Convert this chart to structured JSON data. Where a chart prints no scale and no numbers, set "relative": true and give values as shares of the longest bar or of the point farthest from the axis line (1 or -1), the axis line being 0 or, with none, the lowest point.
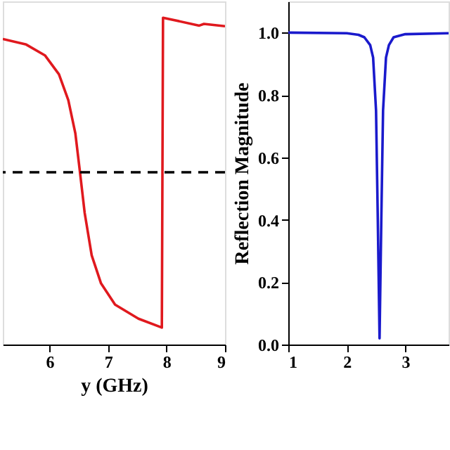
{
  "chart_data": [
    {
      "type": "line",
      "xlabel": "y (GHz)",
      "relative": true,
      "xlim": [
        5.2,
        9
      ],
      "xticks": [
        6,
        7,
        8,
        9
      ],
      "grid": false,
      "series": [
        {
          "color": "#e0191e",
          "x": [
            5.2,
            5.6,
            5.92,
            6.16,
            6.32,
            6.44,
            6.52,
            6.6,
            6.72,
            6.88,
            7.12,
            7.52,
            7.92,
            7.94,
            8.56,
            8.64,
            9.0
          ],
          "values": [
            0.935,
            0.918,
            0.885,
            0.827,
            0.748,
            0.647,
            0.527,
            0.403,
            0.273,
            0.187,
            0.122,
            0.079,
            0.052,
            1.0,
            0.976,
            0.981,
            0.974
          ]
        }
      ],
      "ref_lines": [
        {
          "axis": "y",
          "value": 0.527,
          "color": "#000000",
          "line_style": "dashed"
        }
      ]
    },
    {
      "type": "line",
      "ylabel": "Reflection Magnitude",
      "xlim": [
        1,
        3.74
      ],
      "xticks": [
        1,
        2,
        3
      ],
      "ylim": [
        0,
        1.1
      ],
      "yticks": [
        {
          "value": 0,
          "label": "0.0"
        },
        0.2,
        0.4,
        0.6,
        0.8,
        {
          "value": 1,
          "label": "1.0"
        }
      ],
      "grid": false,
      "series": [
        {
          "color": "#1a1acc",
          "x": [
            1.0,
            2.0,
            2.2,
            2.3,
            2.4,
            2.45,
            2.5,
            2.53,
            2.56,
            2.59,
            2.62,
            2.67,
            2.72,
            2.8,
            3.0,
            3.74
          ],
          "values": [
            1.0,
            0.998,
            0.993,
            0.985,
            0.96,
            0.92,
            0.75,
            0.4,
            0.02,
            0.4,
            0.75,
            0.92,
            0.96,
            0.985,
            0.995,
            0.998
          ]
        }
      ]
    }
  ]
}
